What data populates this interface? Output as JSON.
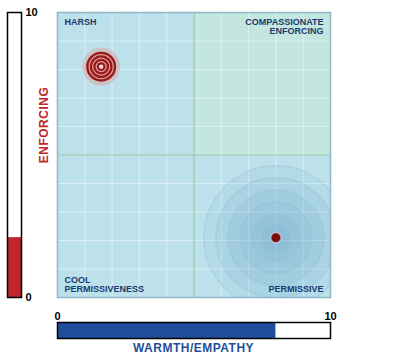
{
  "chart_data": {
    "type": "scatter",
    "x_label": "WARMTH/EMPATHY",
    "y_label": "ENFORCING",
    "xlim": [
      0,
      10
    ],
    "ylim": [
      0,
      10
    ],
    "xticks": [
      0,
      10
    ],
    "yticks": [
      0,
      10
    ],
    "grid": true,
    "tick_labels": true,
    "quadrant_labels": {
      "top-left": "HARSH",
      "top-right": "COMPASSIONATE\nENFORCING",
      "bottom-left": "COOL\nPERMISSIVENESS",
      "bottom-right": "PERMISSIVE"
    },
    "x": [
      1.6,
      8.0
    ],
    "values": [
      8.1,
      2.1
    ],
    "colors": [
      "#9b1b1b",
      "#7a0f0f"
    ]
  }
}
